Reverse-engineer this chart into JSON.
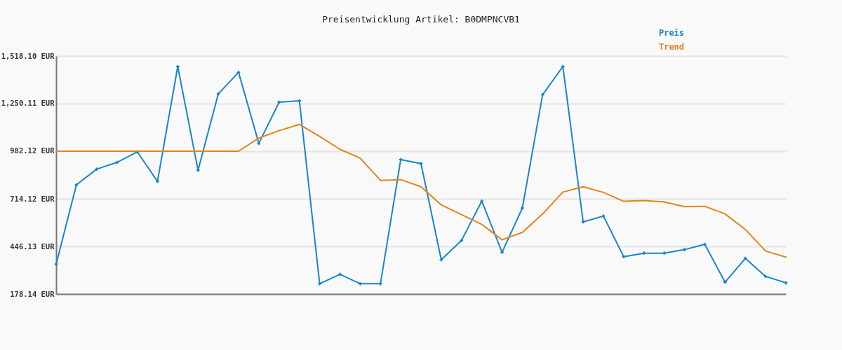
{
  "chart_data": {
    "type": "line",
    "title": "Preisentwicklung Artikel: B0DMPNCVB1",
    "categories": [
      null,
      null,
      null,
      null,
      null,
      null,
      null,
      null,
      null,
      null,
      null,
      null,
      null,
      null,
      null,
      null,
      null,
      null,
      null,
      null,
      null,
      null,
      null,
      null,
      null,
      null,
      null,
      null,
      null,
      null,
      null,
      null,
      null,
      null,
      null,
      null,
      null
    ],
    "series": [
      {
        "name": "Preis",
        "color": "#1a85cc",
        "marker": "cross",
        "values": [
          346,
          793,
          881,
          919,
          979,
          812,
          1459,
          875,
          1305,
          1426,
          1026,
          1258,
          1266,
          236,
          289,
          236,
          236,
          935,
          912,
          371,
          480,
          701,
          413,
          662,
          1300,
          1459,
          584,
          617,
          388,
          408,
          408,
          428,
          458,
          245,
          379,
          277,
          241
        ]
      },
      {
        "name": "Trend",
        "color": "#e0851b",
        "values": [
          982,
          982,
          982,
          982,
          982,
          982,
          982,
          982,
          982,
          982,
          1056,
          1098,
          1133,
          1065,
          993,
          943,
          818,
          822,
          782,
          680,
          625,
          570,
          483,
          525,
          629,
          752,
          782,
          750,
          700,
          704,
          696,
          670,
          672,
          629,
          542,
          420,
          386
        ]
      }
    ],
    "ylim": [
      178.14,
      1518.1
    ],
    "yticks": [
      {
        "value": 178.14,
        "label": "178.14 EUR"
      },
      {
        "value": 446.13,
        "label": "446.13 EUR"
      },
      {
        "value": 714.12,
        "label": "714.12 EUR"
      },
      {
        "value": 982.12,
        "label": "982.12 EUR"
      },
      {
        "value": 1250.11,
        "label": "1,250.11 EUR"
      },
      {
        "value": 1518.1,
        "label": "1,518.10 EUR"
      }
    ],
    "grid": "y",
    "legend": "top right"
  }
}
